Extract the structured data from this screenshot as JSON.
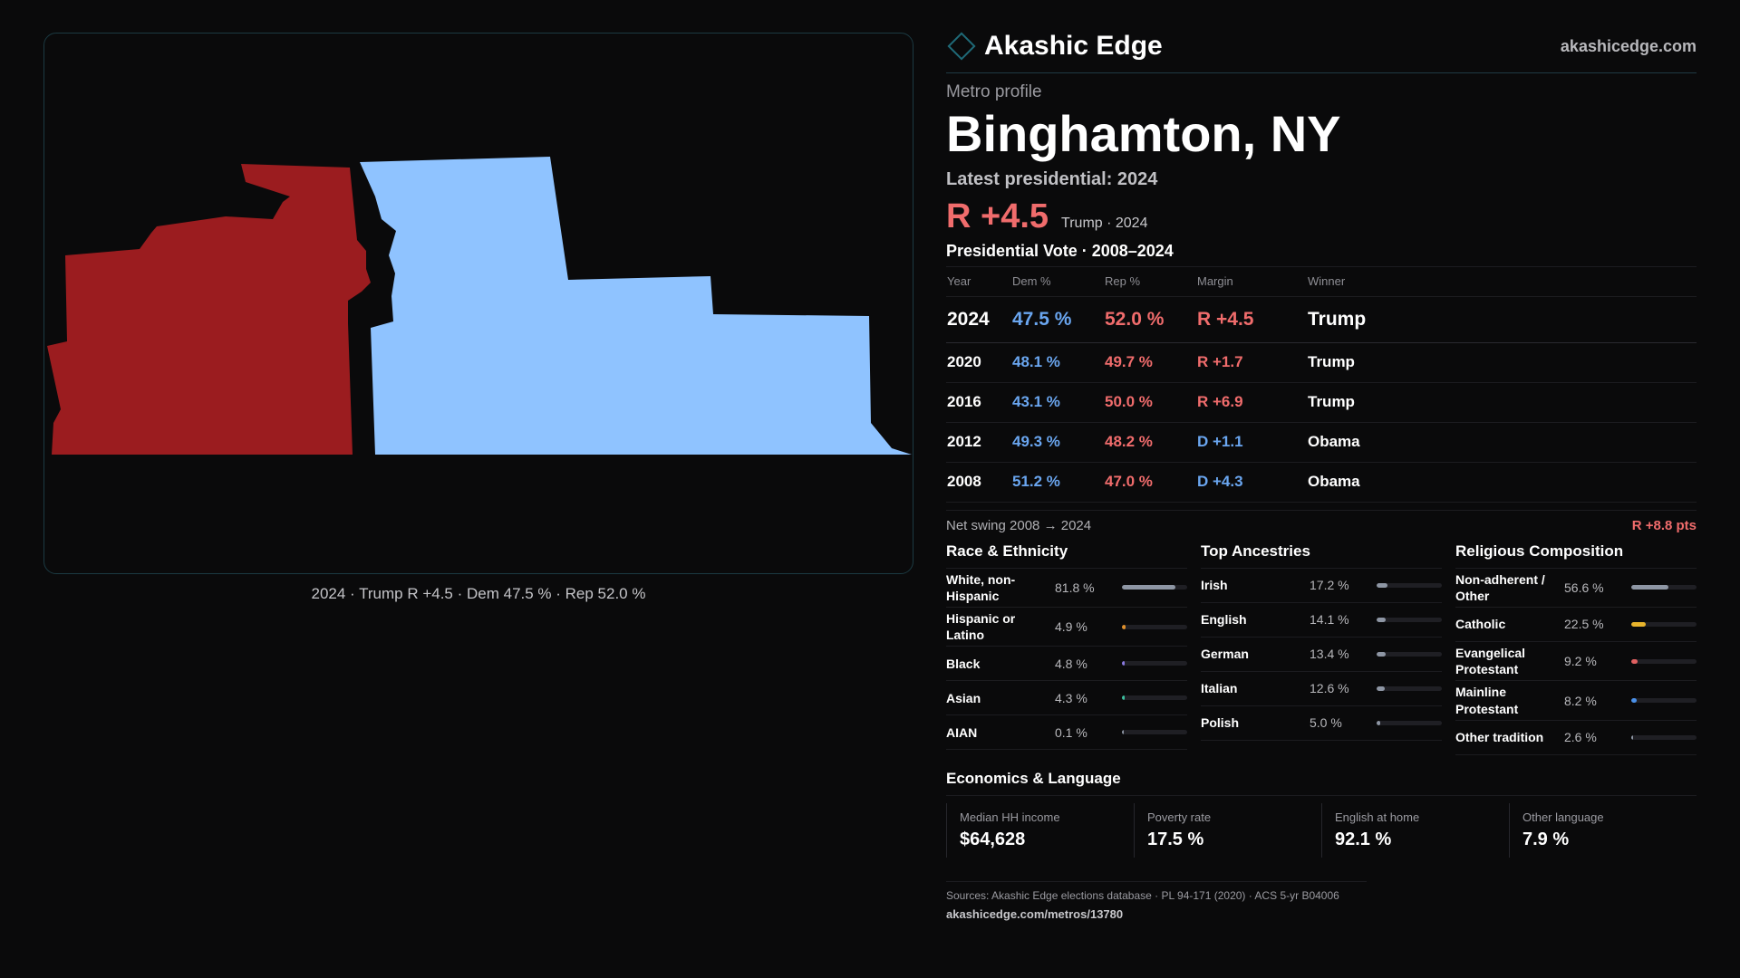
{
  "brand": {
    "name": "Akashic Edge",
    "site": "akashicedge.com",
    "logo_icon": "diamond-outline-icon"
  },
  "profile": {
    "eyebrow": "Metro profile",
    "metro_name": "Binghamton, NY",
    "latest_label": "Latest presidential: 2024",
    "latest_margin": "R +4.5",
    "latest_sub": "Trump · 2024"
  },
  "map": {
    "caption": "2024 · Trump R +4.5 · Dem 47.5 % · Rep 52.0 %",
    "colors": {
      "rep": "#9b1c1f",
      "dem": "#8fc3ff"
    }
  },
  "vote_table": {
    "title": "Presidential Vote · 2008–2024",
    "headers": {
      "year": "Year",
      "dem": "Dem %",
      "rep": "Rep %",
      "margin": "Margin",
      "winner": "Winner"
    },
    "rows": [
      {
        "year": "2024",
        "dem": "47.5 %",
        "rep": "52.0 %",
        "margin": "R +4.5",
        "winner": "Trump",
        "party": "r"
      },
      {
        "year": "2020",
        "dem": "48.1 %",
        "rep": "49.7 %",
        "margin": "R +1.7",
        "winner": "Trump",
        "party": "r"
      },
      {
        "year": "2016",
        "dem": "43.1 %",
        "rep": "50.0 %",
        "margin": "R +6.9",
        "winner": "Trump",
        "party": "r"
      },
      {
        "year": "2012",
        "dem": "49.3 %",
        "rep": "48.2 %",
        "margin": "D +1.1",
        "winner": "Obama",
        "party": "d"
      },
      {
        "year": "2008",
        "dem": "51.2 %",
        "rep": "47.0 %",
        "margin": "D +4.3",
        "winner": "Obama",
        "party": "d"
      }
    ]
  },
  "swing": {
    "label": "Net swing 2008 → 2024",
    "value": "R +8.8 pts"
  },
  "race": {
    "title": "Race & Ethnicity",
    "items": [
      {
        "label": "White, non-Hispanic",
        "pct": "81.8 %",
        "value": 81.8,
        "color": "#8e96a4"
      },
      {
        "label": "Hispanic or Latino",
        "pct": "4.9 %",
        "value": 4.9,
        "color": "#e0902c"
      },
      {
        "label": "Black",
        "pct": "4.8 %",
        "value": 4.8,
        "color": "#8a7ae0"
      },
      {
        "label": "Asian",
        "pct": "4.3 %",
        "value": 4.3,
        "color": "#3cc0a0"
      },
      {
        "label": "AIAN",
        "pct": "0.1 %",
        "value": 0.1,
        "color": "#8e96a4"
      }
    ]
  },
  "ancestry": {
    "title": "Top Ancestries",
    "items": [
      {
        "label": "Irish",
        "pct": "17.2 %",
        "value": 17.2,
        "color": "#8e96a4"
      },
      {
        "label": "English",
        "pct": "14.1 %",
        "value": 14.1,
        "color": "#8e96a4"
      },
      {
        "label": "German",
        "pct": "13.4 %",
        "value": 13.4,
        "color": "#8e96a4"
      },
      {
        "label": "Italian",
        "pct": "12.6 %",
        "value": 12.6,
        "color": "#8e96a4"
      },
      {
        "label": "Polish",
        "pct": "5.0 %",
        "value": 5.0,
        "color": "#8e96a4"
      }
    ]
  },
  "religion": {
    "title": "Religious Composition",
    "items": [
      {
        "label": "Non-adherent / Other",
        "pct": "56.6 %",
        "value": 56.6,
        "color": "#8e96a4"
      },
      {
        "label": "Catholic",
        "pct": "22.5 %",
        "value": 22.5,
        "color": "#e8b42c"
      },
      {
        "label": "Evangelical Protestant",
        "pct": "9.2 %",
        "value": 9.2,
        "color": "#e06060"
      },
      {
        "label": "Mainline Protestant",
        "pct": "8.2 %",
        "value": 8.2,
        "color": "#4a90e8"
      },
      {
        "label": "Other tradition",
        "pct": "2.6 %",
        "value": 2.6,
        "color": "#8e96a4"
      }
    ]
  },
  "economics": {
    "title": "Economics & Language",
    "items": [
      {
        "label": "Median HH income",
        "value": "$64,628"
      },
      {
        "label": "Poverty rate",
        "value": "17.5 %"
      },
      {
        "label": "English at home",
        "value": "92.1 %"
      },
      {
        "label": "Other language",
        "value": "7.9 %"
      }
    ]
  },
  "sources": {
    "text": "Sources: Akashic Edge elections database · PL 94-171 (2020) · ACS 5-yr B04006",
    "link": "akashicedge.com/metros/13780"
  }
}
